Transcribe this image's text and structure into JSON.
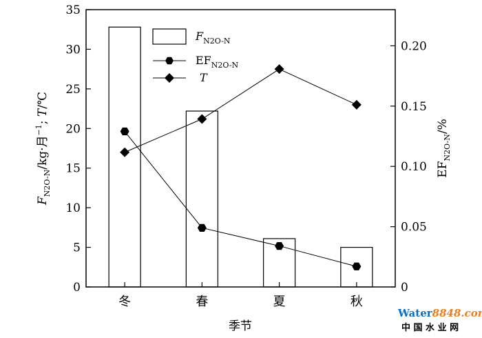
{
  "chart_data": {
    "type": "bar+line",
    "categories": [
      "冬",
      "春",
      "夏",
      "秋"
    ],
    "xlabel": "季节",
    "ylabel_left": {
      "parts": [
        "F",
        "N2O-N",
        "/kg·月",
        "−1",
        "; ",
        "T",
        "/℃"
      ]
    },
    "ylabel_right": {
      "parts": [
        "EF",
        "N2O-N",
        "/%"
      ]
    },
    "ylim_left": [
      0,
      35
    ],
    "yticks_left": [
      "0",
      "5",
      "10",
      "15",
      "20",
      "25",
      "30",
      "35"
    ],
    "ylim_right": [
      0,
      0.23
    ],
    "yticks_right": [
      {
        "value": 0,
        "label": "0"
      },
      {
        "value": 0.05,
        "label": "0.05"
      },
      {
        "value": 0.1,
        "label": "0.10"
      },
      {
        "value": 0.15,
        "label": "0.15"
      },
      {
        "value": 0.2,
        "label": "0.20"
      }
    ],
    "series": [
      {
        "key": "F",
        "name_parts": [
          "F",
          "N2O-N"
        ],
        "type": "bar",
        "axis": "left",
        "values": [
          32.8,
          22.2,
          6.1,
          5.0
        ]
      },
      {
        "key": "EF",
        "name_parts": [
          "EF",
          "N2O-N"
        ],
        "type": "line",
        "marker": "hexagon",
        "axis": "right",
        "values": [
          0.129,
          0.049,
          0.034,
          0.017
        ]
      },
      {
        "key": "T",
        "name_parts": [
          "T",
          ""
        ],
        "type": "line",
        "marker": "diamond",
        "axis": "left",
        "values": [
          17.0,
          21.2,
          27.5,
          23.0
        ]
      }
    ],
    "grid": false,
    "legend_position": "top-center"
  },
  "watermark": {
    "logo_main": "Water",
    "logo_num": "8848",
    "logo_tail": ".com",
    "cn": "中 国 水 业 网"
  }
}
